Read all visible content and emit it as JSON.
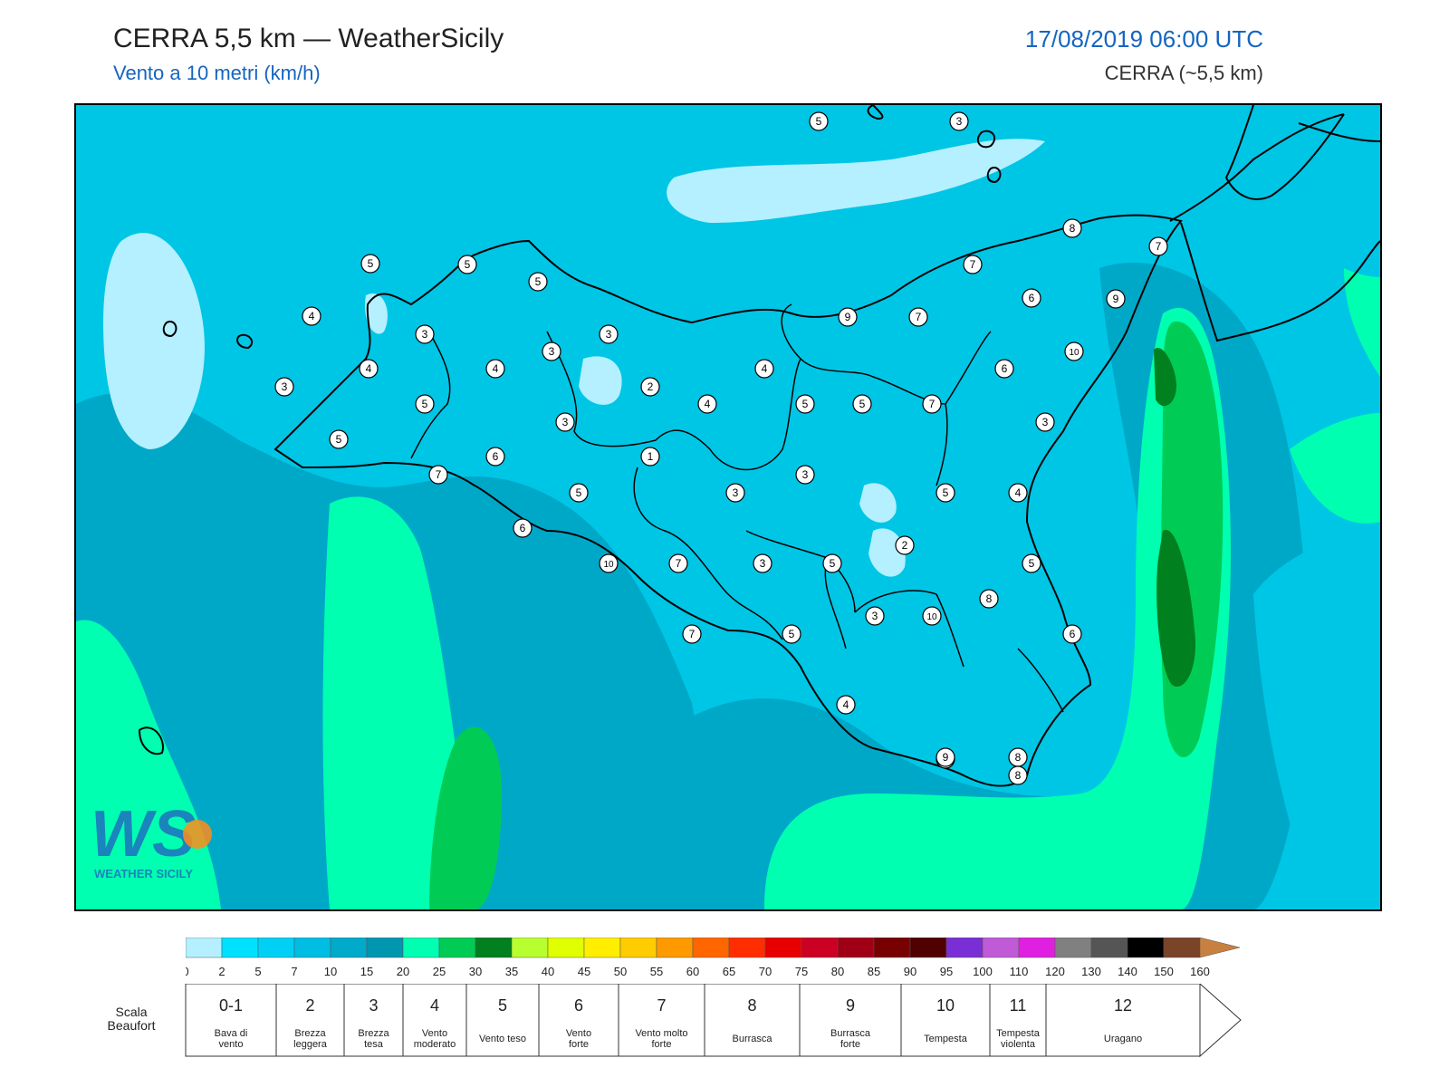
{
  "header": {
    "title": "CERRA 5,5 km — WeatherSicily",
    "subtitle": "Vento a 10 metri (km/h)",
    "datetime": "17/08/2019 06:00 UTC",
    "model": "CERRA (~5,5 km)"
  },
  "logo": {
    "text": "WEATHER SICILY",
    "mark": "WS"
  },
  "map": {
    "station_values": [
      {
        "v": "5"
      },
      {
        "v": "3"
      },
      {
        "v": "8"
      },
      {
        "v": "7"
      },
      {
        "v": "5"
      },
      {
        "v": "5"
      },
      {
        "v": "5"
      },
      {
        "v": "7"
      },
      {
        "v": "6"
      },
      {
        "v": "9"
      },
      {
        "v": "4"
      },
      {
        "v": "9"
      },
      {
        "v": "7"
      },
      {
        "v": "3"
      },
      {
        "v": "3"
      },
      {
        "v": "3"
      },
      {
        "v": "10"
      },
      {
        "v": "4"
      },
      {
        "v": "4"
      },
      {
        "v": "3"
      },
      {
        "v": "4"
      },
      {
        "v": "2"
      },
      {
        "v": "6"
      },
      {
        "v": "5"
      },
      {
        "v": "4"
      },
      {
        "v": "5"
      },
      {
        "v": "7"
      },
      {
        "v": "3"
      },
      {
        "v": "5"
      },
      {
        "v": "3"
      },
      {
        "v": "5"
      },
      {
        "v": "6"
      },
      {
        "v": "7"
      },
      {
        "v": "1"
      },
      {
        "v": "3"
      },
      {
        "v": "5"
      },
      {
        "v": "5"
      },
      {
        "v": "4"
      },
      {
        "v": "3"
      },
      {
        "v": "6"
      },
      {
        "v": "2"
      },
      {
        "v": "10"
      },
      {
        "v": "3"
      },
      {
        "v": "5"
      },
      {
        "v": "7"
      },
      {
        "v": "5"
      },
      {
        "v": "8"
      },
      {
        "v": "3"
      },
      {
        "v": "10"
      },
      {
        "v": "6"
      },
      {
        "v": "5"
      },
      {
        "v": "7"
      },
      {
        "v": "4"
      },
      {
        "v": "8"
      },
      {
        "v": "8"
      },
      {
        "v": "8"
      },
      {
        "v": "9"
      }
    ]
  },
  "colorbar": {
    "ticks": [
      "0",
      "2",
      "5",
      "7",
      "10",
      "15",
      "20",
      "25",
      "30",
      "35",
      "40",
      "45",
      "50",
      "55",
      "60",
      "65",
      "70",
      "75",
      "80",
      "85",
      "90",
      "95",
      "100",
      "110",
      "120",
      "130",
      "140",
      "150",
      "160"
    ],
    "colors": [
      "#b4f0ff",
      "#00e0ff",
      "#00d0f5",
      "#00bde3",
      "#00aacb",
      "#0096b0",
      "#00ffb0",
      "#00cc55",
      "#00801e",
      "#b8ff30",
      "#e0ff00",
      "#ffee00",
      "#ffcc00",
      "#ff9900",
      "#ff6600",
      "#ff2e00",
      "#e80000",
      "#cc0022",
      "#a00016",
      "#780000",
      "#500000",
      "#7a2fd6",
      "#c05ad6",
      "#e020e0",
      "#808080",
      "#555555",
      "#000000",
      "#7a4428",
      "#c88040"
    ]
  },
  "beaufort": {
    "scale_label_1": "Scala",
    "scale_label_2": "Beaufort",
    "cells": [
      {
        "num": "0-1",
        "d1": "Bava di",
        "d2": "vento"
      },
      {
        "num": "2",
        "d1": "Brezza",
        "d2": "leggera"
      },
      {
        "num": "3",
        "d1": "Brezza",
        "d2": "tesa"
      },
      {
        "num": "4",
        "d1": "Vento",
        "d2": "moderato"
      },
      {
        "num": "5",
        "d1": "Vento teso",
        "d2": ""
      },
      {
        "num": "6",
        "d1": "Vento",
        "d2": "forte"
      },
      {
        "num": "7",
        "d1": "Vento molto",
        "d2": "forte"
      },
      {
        "num": "8",
        "d1": "Burrasca",
        "d2": ""
      },
      {
        "num": "9",
        "d1": "Burrasca",
        "d2": "forte"
      },
      {
        "num": "10",
        "d1": "Tempesta",
        "d2": ""
      },
      {
        "num": "11",
        "d1": "Tempesta",
        "d2": "violenta"
      },
      {
        "num": "12",
        "d1": "Uragano",
        "d2": ""
      }
    ]
  }
}
